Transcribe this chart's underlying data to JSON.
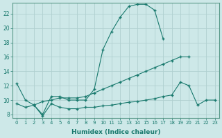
{
  "xlabel": "Humidex (Indice chaleur)",
  "background_color": "#cde8e8",
  "grid_color": "#b0d0d0",
  "line_color": "#1a7a6e",
  "ylim": [
    7.5,
    23.5
  ],
  "xlim": [
    -0.5,
    23.5
  ],
  "yticks": [
    8,
    10,
    12,
    14,
    16,
    18,
    20,
    22
  ],
  "xticks": [
    0,
    1,
    2,
    3,
    4,
    5,
    6,
    7,
    8,
    9,
    10,
    11,
    12,
    13,
    14,
    15,
    16,
    17,
    18,
    19,
    20,
    21,
    22,
    23
  ],
  "line1_x": [
    0,
    1,
    2,
    3,
    4,
    5,
    6,
    7,
    8,
    9,
    10,
    11,
    12,
    13,
    14,
    15,
    16,
    17
  ],
  "line1_y": [
    12.3,
    10.0,
    9.3,
    8.0,
    10.5,
    10.5,
    10.0,
    10.0,
    10.0,
    11.5,
    17.0,
    19.5,
    21.5,
    23.0,
    23.3,
    23.3,
    22.5,
    18.5
  ],
  "line2_x": [
    0,
    1,
    2,
    3,
    4,
    5,
    6,
    7,
    8,
    9,
    10,
    11,
    12,
    13,
    14,
    15,
    16,
    17,
    18,
    19,
    20
  ],
  "line2_y": [
    9.5,
    9.0,
    9.3,
    9.8,
    10.0,
    10.3,
    10.3,
    10.3,
    10.5,
    11.0,
    11.5,
    12.0,
    12.5,
    13.0,
    13.5,
    14.0,
    14.5,
    15.0,
    15.5,
    16.0,
    16.0
  ],
  "line3_x": [
    2,
    3,
    4,
    5,
    6,
    7,
    8,
    9,
    10,
    11,
    12,
    13,
    14,
    15,
    16,
    17,
    18,
    19,
    20,
    21,
    22,
    23
  ],
  "line3_y": [
    9.3,
    7.8,
    9.5,
    9.0,
    8.8,
    8.8,
    9.0,
    9.0,
    9.2,
    9.3,
    9.5,
    9.7,
    9.8,
    10.0,
    10.2,
    10.5,
    10.7,
    12.5,
    12.0,
    9.3,
    10.0,
    10.0
  ]
}
